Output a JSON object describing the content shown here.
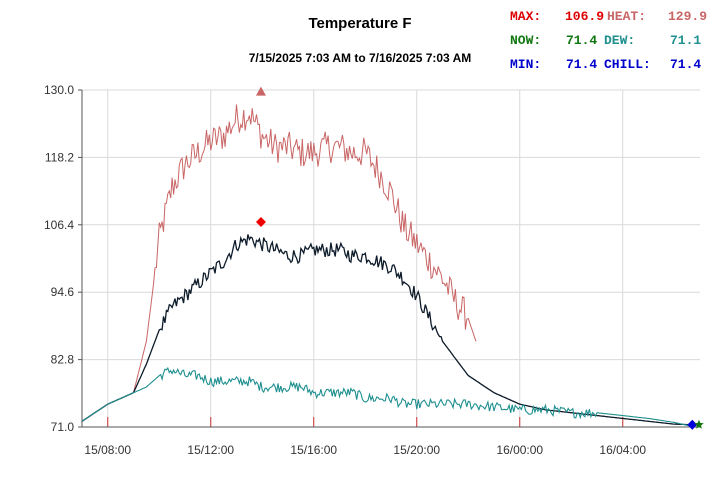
{
  "chart_data": {
    "type": "line",
    "title": "Temperature F",
    "subtitle": "7/15/2025 7:03 AM to 7/16/2025 7:03 AM",
    "ylim": [
      71.0,
      130.0
    ],
    "y_ticks": [
      "130.0",
      "118.2",
      "106.4",
      "94.6",
      "82.8",
      "71.0"
    ],
    "y_tick_values": [
      130.0,
      118.2,
      106.4,
      94.6,
      82.8,
      71.0
    ],
    "x_ticks": [
      "15/08:00",
      "15/12:00",
      "15/16:00",
      "15/20:00",
      "16/00:00",
      "16/04:00"
    ],
    "x_tick_hours": [
      1,
      5,
      9,
      13,
      17,
      21
    ],
    "x_range_hours": [
      0,
      24
    ],
    "grid": true,
    "stats": {
      "max_label": "MAX:",
      "max_value": "106.9",
      "now_label": "NOW:",
      "now_value": "71.4",
      "min_label": "MIN:",
      "min_value": "71.4",
      "heat_label": "HEAT:",
      "heat_value": "129.9",
      "dew_label": "DEW:",
      "dew_value": "71.1",
      "chill_label": "CHILL:",
      "chill_value": "71.4"
    },
    "colors": {
      "temperature": "#0d1b2a",
      "heat_index": "#c96565",
      "dew_point": "#1f8f8f",
      "max_marker": "#ee0000",
      "min_marker": "#0000dd",
      "now_marker": "#117711",
      "max_label": "#dd0000",
      "now_label": "#117711",
      "min_label": "#0000cc",
      "heat_label": "#c96565",
      "dew_label": "#1f8f8f",
      "chill_label": "#0000cc"
    },
    "series": [
      {
        "key": "heat",
        "x_hours": [
          0,
          1,
          2,
          2.5,
          3,
          3.5,
          4,
          4.5,
          5,
          5.5,
          6,
          6.5,
          7,
          7.5,
          8,
          8.5,
          9,
          9.5,
          10,
          10.5,
          11,
          11.5,
          12,
          12.5,
          13,
          13.5,
          14,
          14.5,
          15,
          15.3
        ],
        "values": [
          72,
          75,
          77,
          86,
          104,
          113,
          117,
          119,
          121,
          122,
          125,
          126,
          122,
          120,
          120,
          119,
          119,
          120,
          120,
          119,
          119,
          116,
          112,
          106,
          103,
          100,
          97,
          93,
          90,
          86
        ]
      },
      {
        "key": "temperature",
        "x_hours": [
          0,
          1,
          2,
          2.5,
          3,
          3.5,
          4,
          4.5,
          5,
          5.5,
          6,
          6.5,
          7,
          7.5,
          8,
          8.5,
          9,
          9.5,
          10,
          10.5,
          11,
          11.5,
          12,
          12.5,
          13,
          13.5,
          14,
          14.5,
          15,
          16,
          17,
          18,
          19,
          20,
          21,
          22,
          23,
          23.7
        ],
        "values": [
          72,
          75,
          77,
          82,
          88,
          92,
          94,
          96,
          98,
          100,
          103,
          104,
          103,
          102,
          101,
          101,
          102,
          102,
          102,
          101,
          101,
          100,
          99,
          97,
          94,
          90,
          86,
          83,
          80,
          77,
          75,
          74,
          73.5,
          73,
          72.5,
          72,
          71.5,
          71.4
        ]
      },
      {
        "key": "dew",
        "x_hours": [
          0,
          1,
          2,
          2.5,
          3,
          3.5,
          4,
          4.5,
          5,
          5.5,
          6,
          6.5,
          7,
          7.5,
          8,
          8.5,
          9,
          9.5,
          10,
          10.5,
          11,
          11.5,
          12,
          12.5,
          13,
          14,
          15,
          16,
          17,
          18,
          19,
          20,
          21,
          22,
          23,
          23.7
        ],
        "values": [
          72,
          75,
          77,
          78,
          80,
          81,
          80,
          80,
          79,
          79,
          79,
          79,
          78,
          78,
          78,
          78,
          77,
          77,
          77,
          77,
          76,
          76,
          76,
          75,
          75,
          75,
          75,
          74.5,
          74,
          74,
          73.5,
          73.5,
          73,
          72.5,
          71.8,
          71.1
        ]
      }
    ],
    "markers": {
      "max_temp": {
        "x_hours": 6.95,
        "value": 106.9
      },
      "max_heat": {
        "x_hours": 6.95,
        "value": 129.9
      },
      "min_temp": {
        "x_hours": 23.7,
        "value": 71.4
      },
      "now": {
        "x_hours": 24.0,
        "value": 71.4
      }
    }
  }
}
